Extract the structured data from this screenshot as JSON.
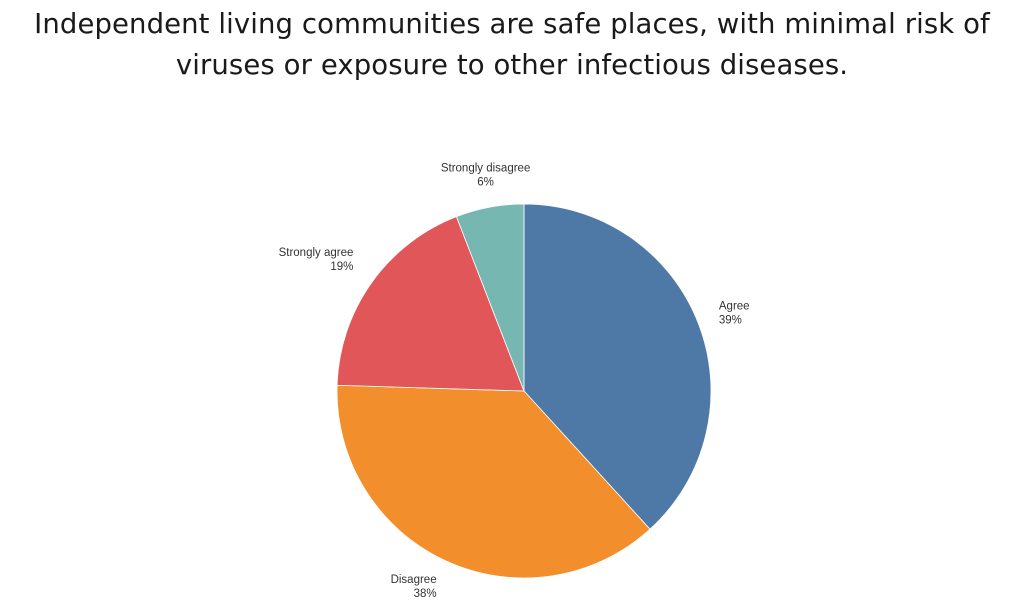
{
  "chart_data": {
    "type": "pie",
    "title_lines": [
      "Independent living communities are safe places, with minimal risk of",
      "viruses or exposure to other infectious diseases."
    ],
    "slices": [
      {
        "label": "Agree",
        "value": 39,
        "value_label": "39%",
        "color": "#4e79a7"
      },
      {
        "label": "Disagree",
        "value": 38,
        "value_label": "38%",
        "color": "#f28e2b"
      },
      {
        "label": "Strongly agree",
        "value": 19,
        "value_label": "19%",
        "color": "#e15759"
      },
      {
        "label": "Strongly disagree",
        "value": 6,
        "value_label": "6%",
        "color": "#76b7b2"
      }
    ],
    "start_angle_deg": 0,
    "direction": "clockwise",
    "legend": "none"
  }
}
